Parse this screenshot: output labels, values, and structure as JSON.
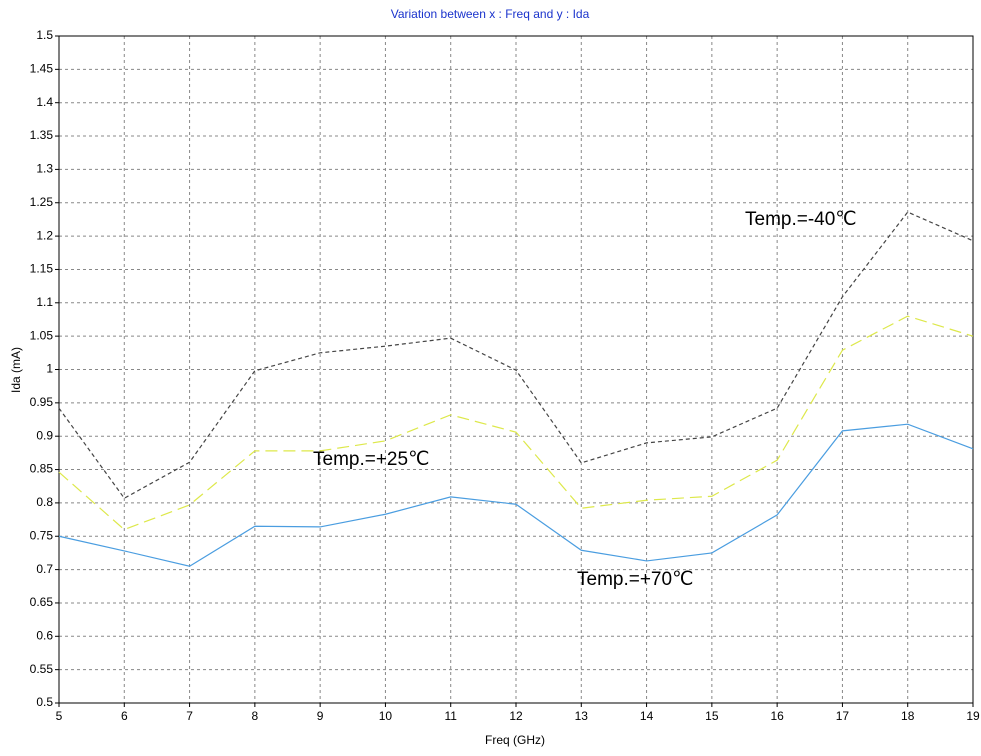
{
  "chart_data": {
    "type": "line",
    "title": "Variation between  x : Freq and y : Ida",
    "x_label": "Freq (GHz)",
    "y_label": "Ida (mA)",
    "x": [
      5,
      6,
      7,
      8,
      9,
      10,
      11,
      12,
      13,
      14,
      15,
      16,
      17,
      18,
      19
    ],
    "series": [
      {
        "name": "Temp.=-40℃",
        "color": "#444444",
        "dash": "4,3",
        "values": [
          0.942,
          0.807,
          0.861,
          0.998,
          1.025,
          1.035,
          1.047,
          0.999,
          0.86,
          0.89,
          0.899,
          0.942,
          1.109,
          1.236,
          1.193
        ]
      },
      {
        "name": "Temp.=+25℃",
        "color": "#dde84a",
        "dash": "12,6",
        "values": [
          0.846,
          0.76,
          0.797,
          0.878,
          0.878,
          0.893,
          0.932,
          0.906,
          0.792,
          0.804,
          0.81,
          0.864,
          1.029,
          1.08,
          1.05
        ]
      },
      {
        "name": "Temp.=+70℃",
        "color": "#4a9de0",
        "dash": "none",
        "values": [
          0.75,
          0.728,
          0.705,
          0.765,
          0.764,
          0.783,
          0.809,
          0.798,
          0.729,
          0.713,
          0.725,
          0.782,
          0.908,
          0.918,
          0.881
        ]
      }
    ],
    "xlim": [
      5,
      19
    ],
    "xticks": [
      5,
      6,
      7,
      8,
      9,
      10,
      11,
      12,
      13,
      14,
      15,
      16,
      17,
      18,
      19
    ],
    "ylim": [
      0.5,
      1.5
    ],
    "yticks": [
      0.5,
      0.55,
      0.6,
      0.65,
      0.7,
      0.75,
      0.8,
      0.85,
      0.9,
      0.95,
      1,
      1.05,
      1.1,
      1.15,
      1.2,
      1.25,
      1.3,
      1.35,
      1.4,
      1.45,
      1.5
    ],
    "grid": true
  }
}
